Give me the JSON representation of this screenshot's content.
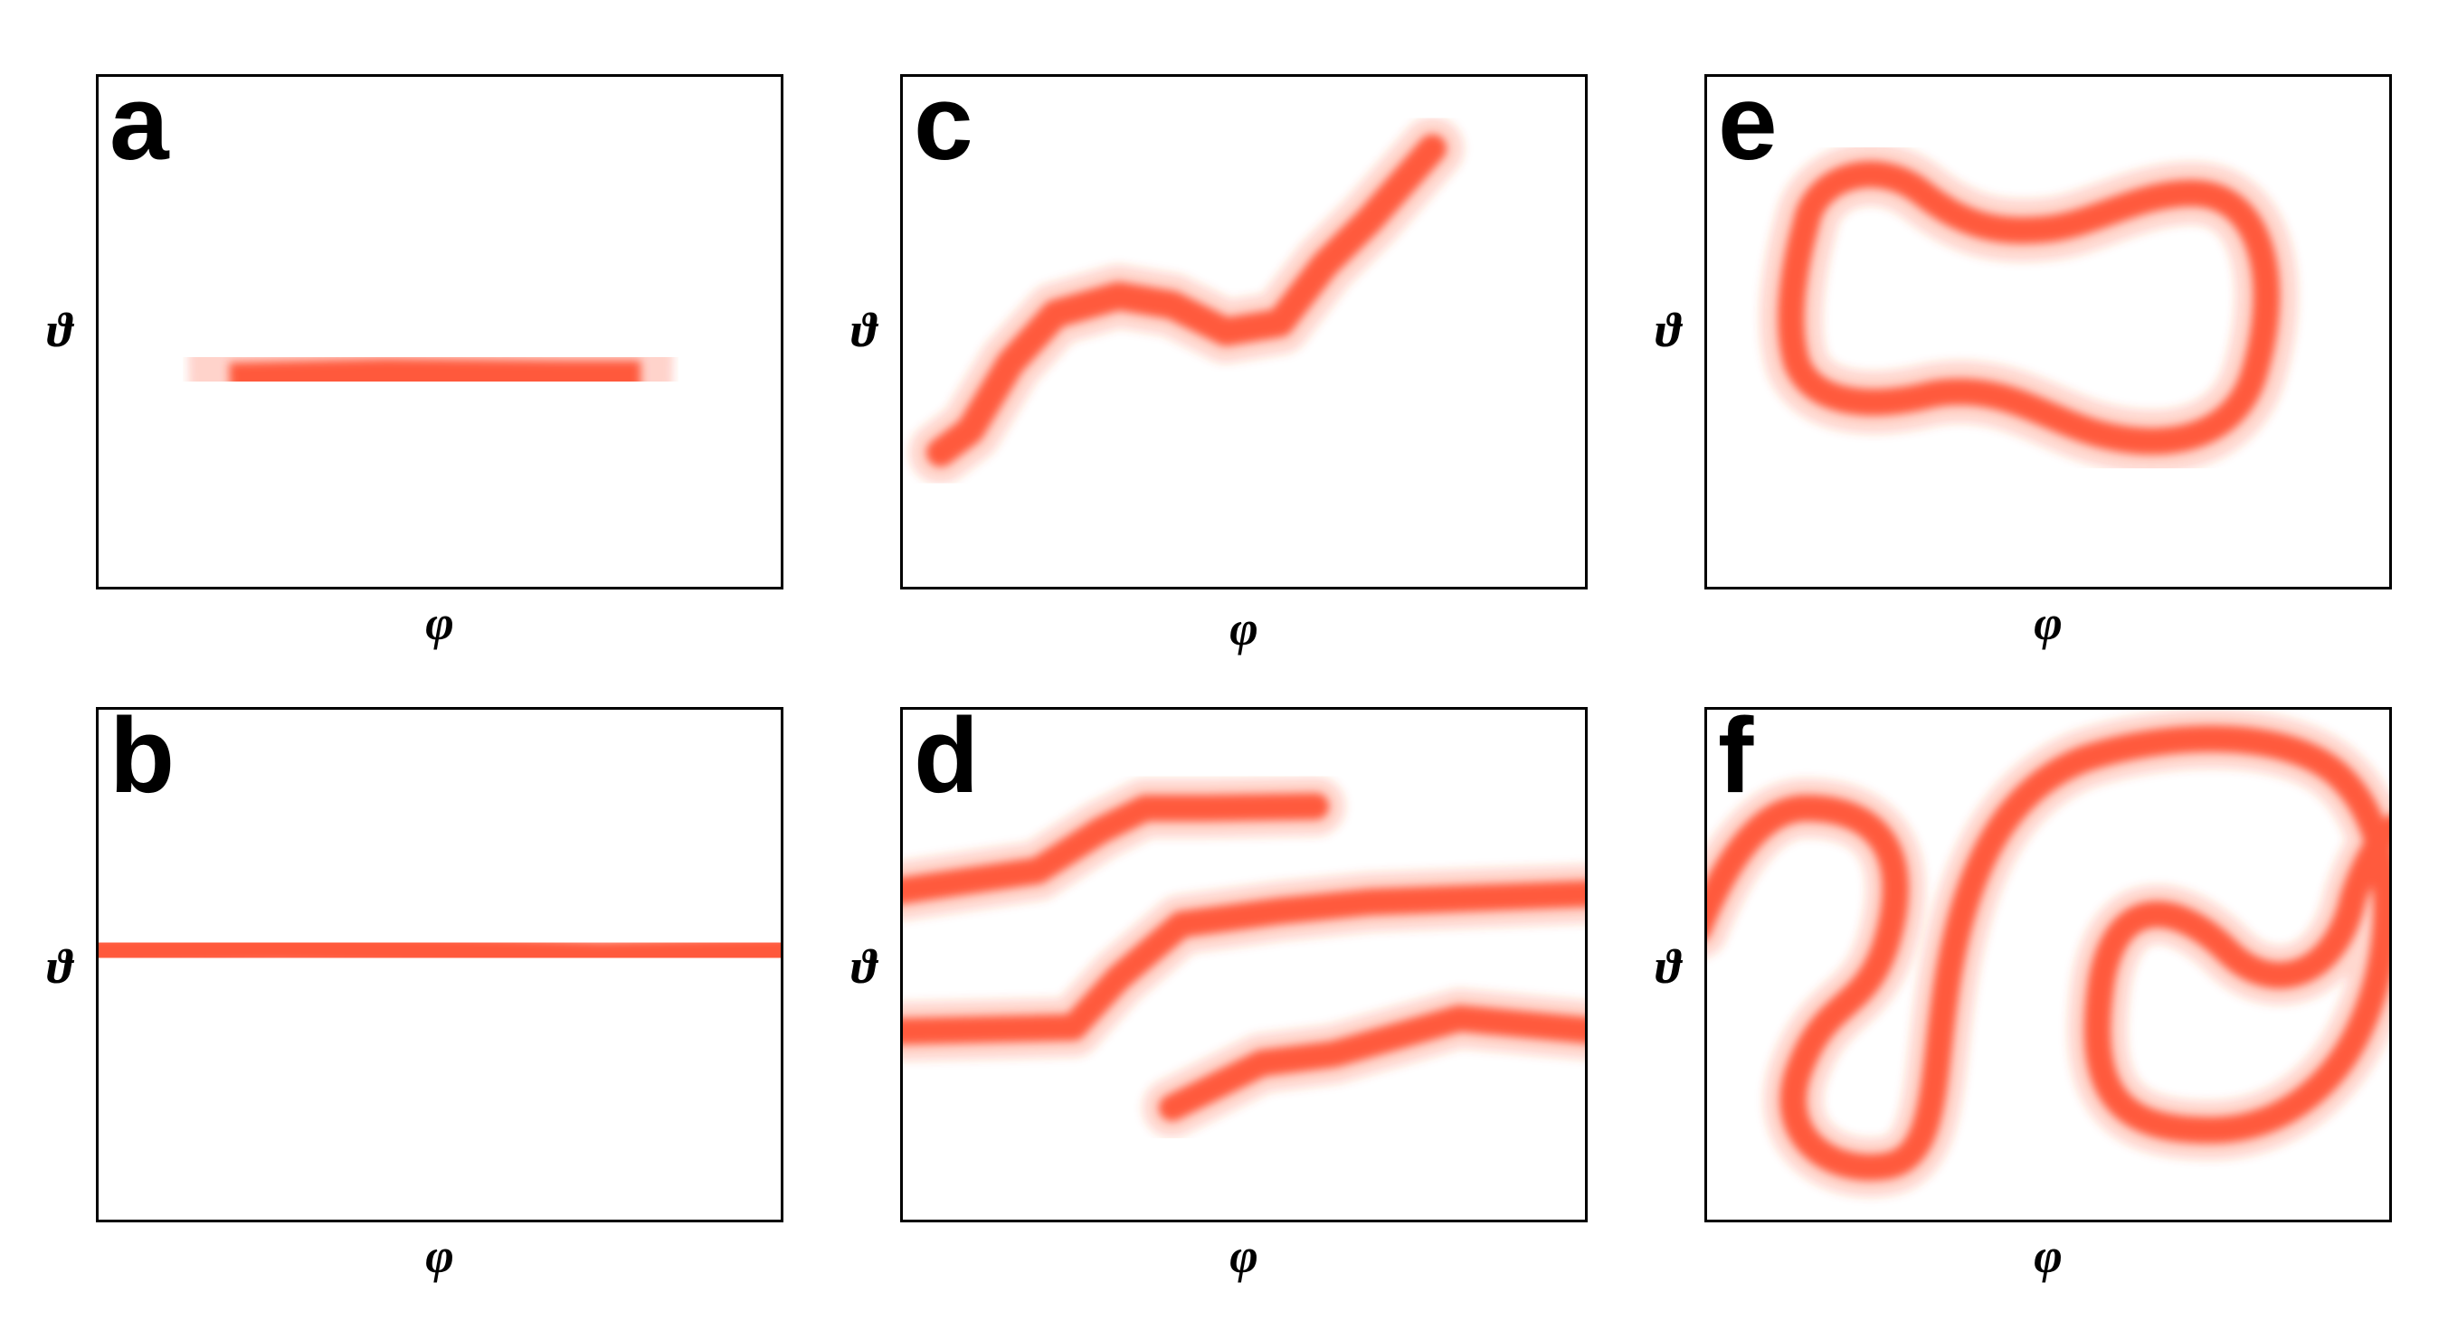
{
  "axis_labels": {
    "x": "φ",
    "y": "ϑ"
  },
  "colors": {
    "trace": "#ff4c2b",
    "border": "#000000",
    "background": "#ffffff"
  },
  "panels": [
    {
      "id": "a",
      "label": "a"
    },
    {
      "id": "b",
      "label": "b"
    },
    {
      "id": "c",
      "label": "c"
    },
    {
      "id": "d",
      "label": "d"
    },
    {
      "id": "e",
      "label": "e"
    },
    {
      "id": "f",
      "label": "f"
    }
  ]
}
